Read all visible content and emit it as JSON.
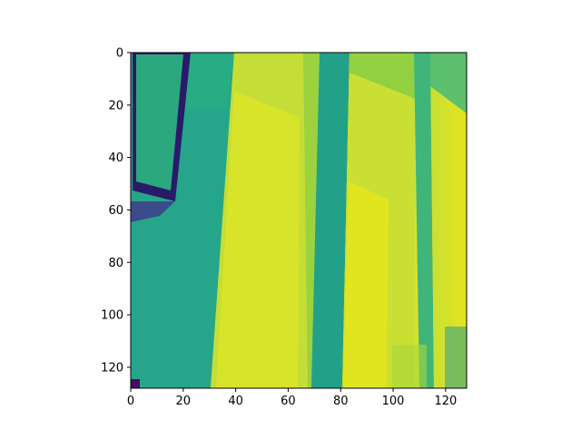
{
  "chart_data": {
    "type": "heatmap",
    "title": "",
    "xlabel": "",
    "ylabel": "",
    "grid": false,
    "colormap": "viridis",
    "image_shape": [
      128,
      128
    ],
    "xlim": [
      0,
      128
    ],
    "ylim": [
      128,
      0
    ],
    "x_ticks": [
      0,
      20,
      40,
      60,
      80,
      100,
      120
    ],
    "y_ticks": [
      0,
      20,
      40,
      60,
      80,
      100,
      120
    ],
    "x_tick_labels": [
      "0",
      "20",
      "40",
      "60",
      "80",
      "100",
      "120"
    ],
    "y_tick_labels": [
      "0",
      "20",
      "40",
      "60",
      "80",
      "100",
      "120"
    ]
  }
}
